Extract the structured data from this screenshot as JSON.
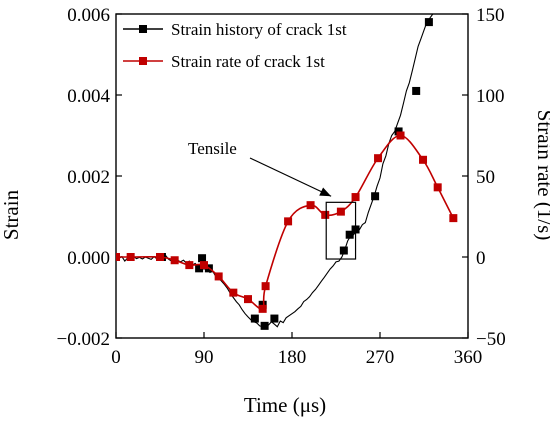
{
  "chart_data": {
    "type": "line",
    "xlabel": "Time (μs)",
    "ylabel_left": "Strain",
    "ylabel_right": "Strain rate (1/s)",
    "xlim": [
      0,
      360
    ],
    "ylim_left": [
      -0.002,
      0.006
    ],
    "ylim_right": [
      -50,
      150
    ],
    "x_ticks": [
      0,
      90,
      180,
      270,
      360
    ],
    "x_tick_labels": [
      "0",
      "90",
      "180",
      "270",
      "360"
    ],
    "y_left_ticks": [
      -0.002,
      0,
      0.002,
      0.004,
      0.006
    ],
    "y_left_tick_labels": [
      "−0.002",
      "0.000",
      "0.002",
      "0.004",
      "0.006"
    ],
    "y_right_ticks": [
      -50,
      0,
      50,
      100,
      150
    ],
    "y_right_tick_labels": [
      "−50",
      "0",
      "50",
      "100",
      "150"
    ],
    "legend_position": "top-left",
    "series": [
      {
        "name": "Strain history of crack 1st",
        "axis": "left",
        "color": "#000000",
        "marker": "square",
        "line_points": [
          [
            0,
            2e-05
          ],
          [
            3,
            -3e-05
          ],
          [
            6,
            1e-05
          ],
          [
            9,
            -0.0001
          ],
          [
            12,
            -2e-05
          ],
          [
            15,
            -6e-05
          ],
          [
            18,
            1e-05
          ],
          [
            21,
            -4e-05
          ],
          [
            24,
            -1e-05
          ],
          [
            27,
            -5e-05
          ],
          [
            30,
            0.0
          ],
          [
            33,
            -3e-05
          ],
          [
            36,
            -6e-05
          ],
          [
            39,
            1e-05
          ],
          [
            42,
            -5e-05
          ],
          [
            45,
            -8e-05
          ],
          [
            48,
            -2e-05
          ],
          [
            51,
            3e-05
          ],
          [
            54,
            -6e-05
          ],
          [
            57,
            -0.0001
          ],
          [
            60,
            -4e-05
          ],
          [
            63,
            -8e-05
          ],
          [
            66,
            -0.00012
          ],
          [
            69,
            -8e-05
          ],
          [
            72,
            -0.00015
          ],
          [
            75,
            -0.0001
          ],
          [
            78,
            -0.0002
          ],
          [
            81,
            -0.00016
          ],
          [
            84,
            -0.00024
          ],
          [
            87,
            -0.0002
          ],
          [
            90,
            -0.0003
          ],
          [
            93,
            -0.00026
          ],
          [
            96,
            -0.00038
          ],
          [
            99,
            -0.00035
          ],
          [
            102,
            -0.00048
          ],
          [
            105,
            -0.00052
          ],
          [
            108,
            -0.0006
          ],
          [
            111,
            -0.00068
          ],
          [
            114,
            -0.00078
          ],
          [
            117,
            -0.0009
          ],
          [
            120,
            -0.001
          ],
          [
            123,
            -0.0011
          ],
          [
            126,
            -0.00118
          ],
          [
            129,
            -0.0013
          ],
          [
            132,
            -0.0014
          ],
          [
            135,
            -0.00148
          ],
          [
            138,
            -0.00155
          ],
          [
            141,
            -0.0016
          ],
          [
            144,
            -0.00163
          ],
          [
            147,
            -0.0017
          ],
          [
            150,
            -0.00172
          ],
          [
            153,
            -0.0017
          ],
          [
            156,
            -0.00168
          ],
          [
            159,
            -0.0016
          ],
          [
            162,
            -0.00166
          ],
          [
            165,
            -0.00172
          ],
          [
            168,
            -0.00158
          ],
          [
            171,
            -0.00162
          ],
          [
            174,
            -0.0015
          ],
          [
            177,
            -0.00145
          ],
          [
            180,
            -0.0014
          ],
          [
            183,
            -0.00135
          ],
          [
            186,
            -0.00128
          ],
          [
            189,
            -0.00122
          ],
          [
            192,
            -0.0011
          ],
          [
            195,
            -0.00105
          ],
          [
            198,
            -0.00098
          ],
          [
            201,
            -0.00088
          ],
          [
            204,
            -0.0008
          ],
          [
            207,
            -0.0007
          ],
          [
            210,
            -0.0006
          ],
          [
            213,
            -0.0005
          ],
          [
            216,
            -0.0004
          ],
          [
            219,
            -0.0003
          ],
          [
            222,
            -0.00022
          ],
          [
            225,
            -0.00012
          ],
          [
            228,
            -0.0001
          ],
          [
            231,
            0.0
          ],
          [
            234,
            0.00018
          ],
          [
            237,
            0.0004
          ],
          [
            240,
            0.00052
          ],
          [
            243,
            0.00055
          ],
          [
            246,
            0.00065
          ],
          [
            249,
            0.00068
          ],
          [
            252,
            0.0008
          ],
          [
            255,
            0.00085
          ],
          [
            258,
            0.0011
          ],
          [
            261,
            0.0013
          ],
          [
            264,
            0.0015
          ],
          [
            267,
            0.00175
          ],
          [
            270,
            0.00195
          ],
          [
            273,
            0.0023
          ],
          [
            276,
            0.0025
          ],
          [
            279,
            0.0028
          ],
          [
            282,
            0.003
          ],
          [
            285,
            0.0031
          ],
          [
            288,
            0.0033
          ],
          [
            291,
            0.0035
          ],
          [
            294,
            0.0038
          ],
          [
            297,
            0.0041
          ],
          [
            300,
            0.0043
          ],
          [
            303,
            0.0046
          ],
          [
            306,
            0.0049
          ],
          [
            309,
            0.0052
          ],
          [
            312,
            0.0054
          ],
          [
            315,
            0.0056
          ],
          [
            318,
            0.0058
          ],
          [
            321,
            0.0059
          ],
          [
            324,
            0.006
          ],
          [
            327,
            0.0061
          ]
        ],
        "markers": [
          [
            47,
            0.0
          ],
          [
            85,
            -0.00028
          ],
          [
            88,
            -3e-05
          ],
          [
            95,
            -0.00028
          ],
          [
            142,
            -0.00152
          ],
          [
            150,
            -0.00118
          ],
          [
            152,
            -0.0017
          ],
          [
            162,
            -0.00152
          ],
          [
            233,
            0.00016
          ],
          [
            239,
            0.00055
          ],
          [
            245,
            0.00068
          ],
          [
            265,
            0.0015
          ],
          [
            289,
            0.0031
          ],
          [
            307,
            0.0041
          ],
          [
            320,
            0.0058
          ]
        ]
      },
      {
        "name": "Strain rate of crack 1st",
        "axis": "right",
        "color": "#c00000",
        "marker": "square",
        "points": [
          [
            0,
            0
          ],
          [
            15,
            0
          ],
          [
            45,
            0
          ],
          [
            60,
            -2
          ],
          [
            75,
            -5
          ],
          [
            90,
            -5
          ],
          [
            105,
            -12
          ],
          [
            120,
            -22
          ],
          [
            135,
            -26
          ],
          [
            150,
            -32
          ],
          [
            153,
            -18
          ],
          [
            176,
            22
          ],
          [
            199,
            32
          ],
          [
            214,
            26
          ],
          [
            230,
            28
          ],
          [
            245,
            37
          ],
          [
            268,
            61
          ],
          [
            291,
            75
          ],
          [
            314,
            60
          ],
          [
            329,
            43
          ],
          [
            345,
            24
          ]
        ]
      }
    ],
    "annotations": [
      {
        "text": "Tensile",
        "type": "arrow-label",
        "arrow_to": [
          220,
          0.0015
        ]
      }
    ],
    "highlight_box": {
      "x": [
        215,
        245
      ],
      "y": [
        -5e-05,
        0.00135
      ]
    }
  }
}
